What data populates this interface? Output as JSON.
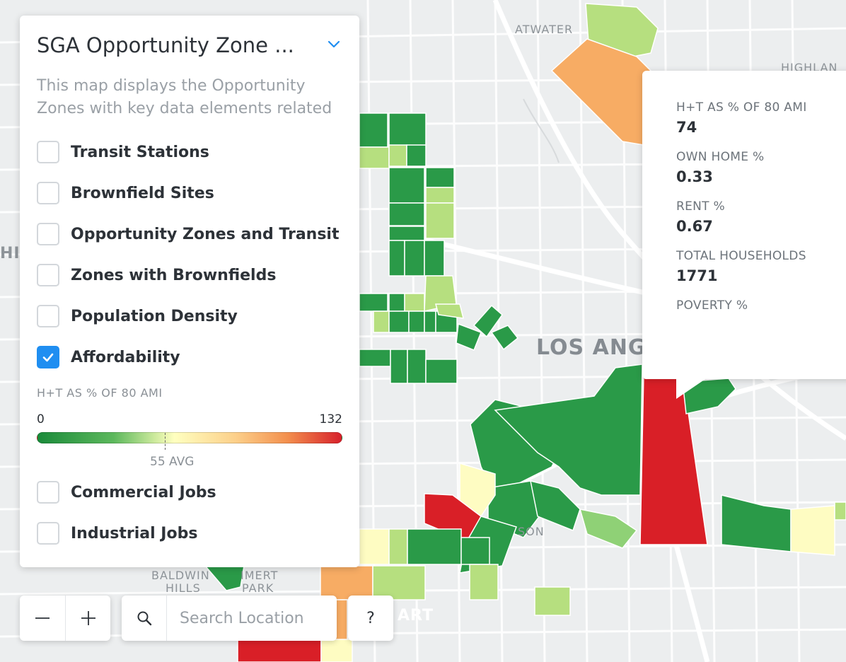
{
  "map": {
    "place_labels": [
      "ATWATER",
      "HIGHLAN",
      "HI",
      "LOS ANG",
      "SON",
      "BALDWIN",
      "HILLS",
      "IMERT",
      "PARK",
      "ART"
    ],
    "colors": {
      "dark_green": "#2a9a48",
      "mid_green": "#8fd176",
      "light_green": "#b6df7f",
      "pale_yellow": "#fefcc2",
      "orange": "#f7ac64",
      "red": "#d91f27",
      "background": "#eceeef",
      "road": "#ffffff"
    }
  },
  "panel": {
    "title": "SGA Opportunity Zone ...",
    "description": "This map displays the Opportunity Zones with key data elements related",
    "layers": [
      {
        "label": "Transit Stations",
        "checked": false
      },
      {
        "label": "Brownfield Sites",
        "checked": false
      },
      {
        "label": "Opportunity Zones and Transit",
        "checked": false
      },
      {
        "label": "Zones with Brownfields",
        "checked": false
      },
      {
        "label": "Population Density",
        "checked": false
      },
      {
        "label": "Affordability",
        "checked": true
      }
    ],
    "legend": {
      "title": "H+T AS % OF 80 AMI",
      "min": "0",
      "max": "132",
      "avg_label": "55 AVG"
    },
    "layers_after": [
      {
        "label": "Commercial Jobs",
        "checked": false
      },
      {
        "label": "Industrial Jobs",
        "checked": false
      }
    ]
  },
  "popup": {
    "fields": [
      {
        "key": "H+T AS % OF 80 AMI",
        "value": "74"
      },
      {
        "key": "OWN HOME %",
        "value": "0.33"
      },
      {
        "key": "RENT %",
        "value": "0.67"
      },
      {
        "key": "TOTAL HOUSEHOLDS",
        "value": "1771"
      },
      {
        "key": "POVERTY %",
        "value": ""
      }
    ]
  },
  "controls": {
    "zoom_out": "−",
    "zoom_in": "+",
    "search_placeholder": "Search Location",
    "help": "?"
  }
}
